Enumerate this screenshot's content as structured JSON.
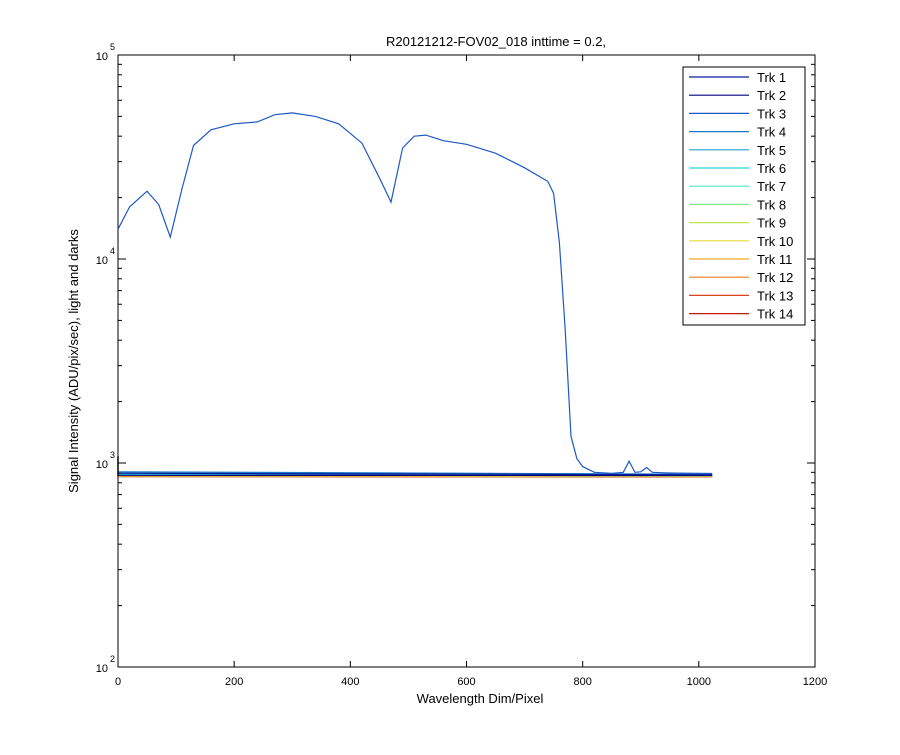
{
  "chart_data": {
    "type": "line",
    "title": "R20121212-FOV02_018 inttime = 0.2,",
    "xlabel": "Wavelength Dim/Pixel",
    "ylabel": "Signal Intensity (ADU/pix/sec), light and darks",
    "xlim": [
      0,
      1200
    ],
    "ylim": [
      100,
      100000
    ],
    "yscale": "log",
    "grid": false,
    "legend_position": "top-right",
    "x_ticks": [
      "0",
      "200",
      "400",
      "600",
      "800",
      "1000",
      "1200"
    ],
    "y_ticks": [
      {
        "base": "10",
        "exp": "2",
        "value": 100
      },
      {
        "base": "10",
        "exp": "3",
        "value": 1000
      },
      {
        "base": "10",
        "exp": "4",
        "value": 10000
      },
      {
        "base": "10",
        "exp": "5",
        "value": 100000
      }
    ],
    "series": [
      {
        "name": "Trk 1",
        "color": "#0a1e9c",
        "x": [
          0,
          1023
        ],
        "y": [
          890,
          875
        ]
      },
      {
        "name": "Trk 2",
        "color": "#000080",
        "x": [
          0,
          1023
        ],
        "y": [
          870,
          868
        ]
      },
      {
        "name": "Trk 3",
        "color": "#1f58c4",
        "x": [
          0,
          20,
          50,
          70,
          90,
          110,
          130,
          160,
          200,
          240,
          270,
          300,
          340,
          380,
          420,
          450,
          470,
          490,
          510,
          530,
          560,
          600,
          650,
          700,
          740,
          750,
          760,
          770,
          780,
          790,
          800,
          820,
          850,
          870,
          880,
          890,
          900,
          910,
          920,
          940,
          960,
          1000,
          1023
        ],
        "y": [
          14000,
          18000,
          21500,
          18500,
          12800,
          22000,
          36000,
          43000,
          46000,
          47000,
          51000,
          52000,
          50000,
          46000,
          37000,
          25000,
          19000,
          35000,
          40000,
          40500,
          38000,
          36500,
          33000,
          28000,
          24000,
          21000,
          12000,
          4500,
          1350,
          1050,
          960,
          900,
          890,
          900,
          1020,
          900,
          905,
          950,
          900,
          895,
          892,
          890,
          888
        ]
      },
      {
        "name": "Trk 4",
        "color": "#1e78c8",
        "x": [
          0,
          1023
        ],
        "y": [
          905,
          880
        ]
      },
      {
        "name": "Trk 5",
        "color": "#22a5d4",
        "x": [
          0,
          1023
        ],
        "y": [
          895,
          882
        ]
      },
      {
        "name": "Trk 6",
        "color": "#2cd2dc",
        "x": [
          0,
          1023
        ],
        "y": [
          880,
          872
        ]
      },
      {
        "name": "Trk 7",
        "color": "#4ae6c8",
        "x": [
          0,
          1023
        ],
        "y": [
          875,
          870
        ]
      },
      {
        "name": "Trk 8",
        "color": "#82e68c",
        "x": [
          0,
          1023
        ],
        "y": [
          872,
          866
        ]
      },
      {
        "name": "Trk 9",
        "color": "#bee650",
        "x": [
          0,
          1023
        ],
        "y": [
          868,
          864
        ]
      },
      {
        "name": "Trk 10",
        "color": "#e6dc32",
        "x": [
          0,
          1023
        ],
        "y": [
          866,
          862
        ]
      },
      {
        "name": "Trk 11",
        "color": "#f0aa28",
        "x": [
          0,
          1023
        ],
        "y": [
          864,
          860
        ]
      },
      {
        "name": "Trk 12",
        "color": "#ee7822",
        "x": [
          0,
          1023
        ],
        "y": [
          862,
          858
        ]
      },
      {
        "name": "Trk 13",
        "color": "#dc461a",
        "x": [
          0,
          1023
        ],
        "y": [
          860,
          856
        ]
      },
      {
        "name": "Trk 14",
        "color": "#c81414",
        "x": [
          0,
          1023
        ],
        "y": [
          858,
          855
        ]
      }
    ]
  }
}
